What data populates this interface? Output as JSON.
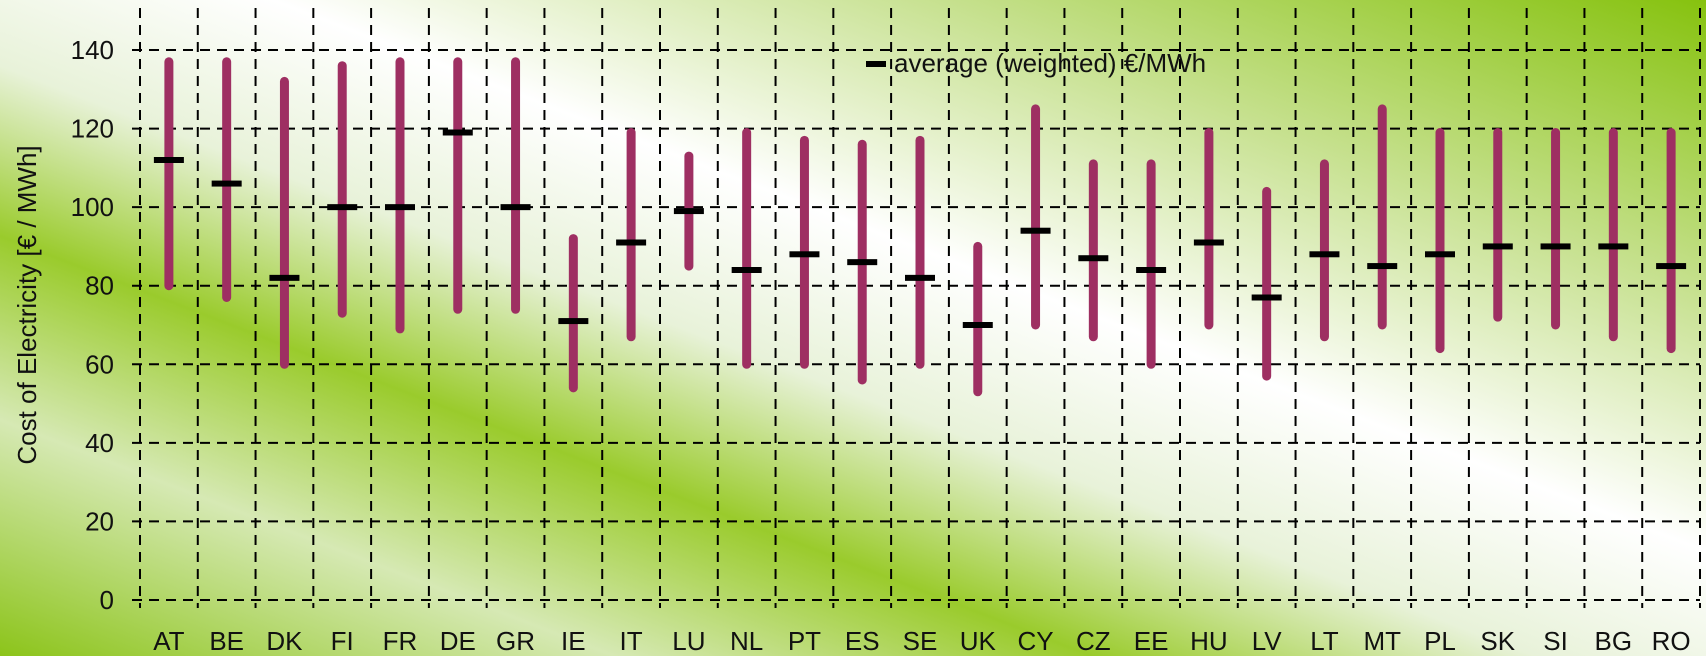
{
  "chart_data": {
    "type": "range",
    "ylabel": "Cost of Electricity [€ / MWh]",
    "ylim": [
      0,
      140
    ],
    "yticks": [
      0,
      20,
      40,
      60,
      80,
      100,
      120,
      140
    ],
    "grid": true,
    "legend_position": "top-center",
    "legend_label": "average (weighted) €/MWh",
    "categories": [
      "AT",
      "BE",
      "DK",
      "FI",
      "FR",
      "DE",
      "GR",
      "IE",
      "IT",
      "LU",
      "NL",
      "PT",
      "ES",
      "SE",
      "UK",
      "CY",
      "CZ",
      "EE",
      "HU",
      "LV",
      "LT",
      "MT",
      "PL",
      "SK",
      "SI",
      "BG",
      "RO"
    ],
    "min": [
      80,
      77,
      60,
      73,
      69,
      74,
      74,
      54,
      67,
      85,
      60,
      60,
      56,
      60,
      53,
      70,
      67,
      60,
      70,
      57,
      67,
      70,
      64,
      72,
      70,
      67,
      64
    ],
    "max": [
      137,
      137,
      132,
      136,
      137,
      137,
      137,
      92,
      119,
      113,
      119,
      117,
      116,
      117,
      90,
      125,
      111,
      111,
      119,
      104,
      111,
      125,
      119,
      119,
      119,
      119,
      119
    ],
    "average": [
      112,
      106,
      82,
      100,
      100,
      119,
      100,
      71,
      91,
      99,
      84,
      88,
      86,
      82,
      70,
      94,
      87,
      84,
      91,
      77,
      88,
      85,
      88,
      90,
      90,
      90,
      85
    ],
    "colors": {
      "range_bar": "#9e2f62",
      "average_marker": "#000000",
      "grid": "#000000",
      "background_green": "#86c20e"
    }
  }
}
